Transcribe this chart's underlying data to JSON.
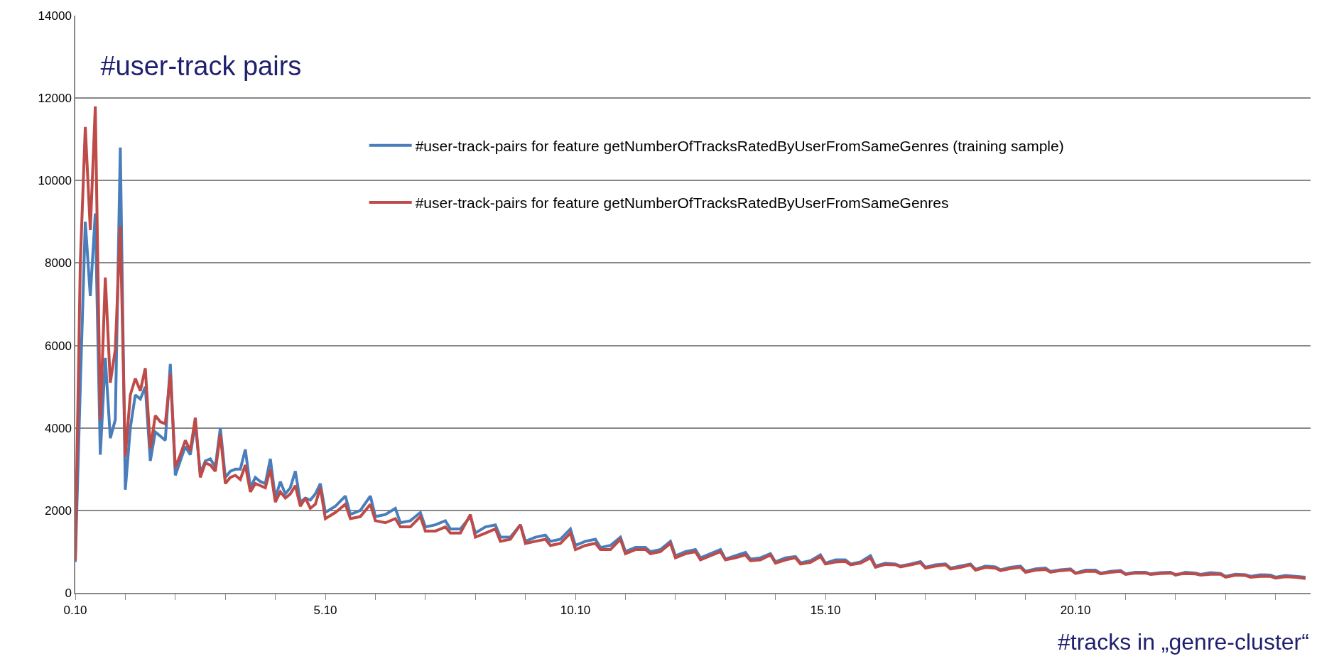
{
  "chart_data": {
    "type": "line",
    "title": "#user-track pairs",
    "xlabel": "#tracks in „genre-cluster“",
    "x": [
      0.1,
      0.2,
      0.3,
      0.4,
      0.5,
      0.6,
      0.7,
      0.8,
      0.9,
      1.0,
      1.1,
      1.2,
      1.3,
      1.4,
      1.5,
      1.6,
      1.7,
      1.8,
      1.9,
      2.0,
      2.1,
      2.2,
      2.3,
      2.4,
      2.5,
      2.6,
      2.7,
      2.8,
      2.9,
      3.0,
      3.1,
      3.2,
      3.3,
      3.4,
      3.5,
      3.6,
      3.7,
      3.8,
      3.9,
      4.0,
      4.1,
      4.2,
      4.3,
      4.4,
      4.5,
      4.6,
      4.7,
      4.8,
      4.9,
      5.0,
      5.1,
      5.3,
      5.5,
      5.6,
      5.8,
      6.0,
      6.1,
      6.3,
      6.5,
      6.6,
      6.8,
      7.0,
      7.1,
      7.3,
      7.5,
      7.6,
      7.8,
      8.0,
      8.1,
      8.3,
      8.5,
      8.6,
      8.8,
      9.0,
      9.1,
      9.3,
      9.5,
      9.6,
      9.8,
      10.0,
      10.1,
      10.3,
      10.5,
      10.6,
      10.8,
      11.0,
      11.1,
      11.3,
      11.5,
      11.6,
      11.8,
      12.0,
      12.1,
      12.3,
      12.5,
      12.6,
      12.8,
      13.0,
      13.1,
      13.3,
      13.5,
      13.6,
      13.8,
      14.0,
      14.1,
      14.3,
      14.5,
      14.6,
      14.8,
      15.0,
      15.1,
      15.3,
      15.5,
      15.6,
      15.8,
      16.0,
      16.1,
      16.3,
      16.5,
      16.6,
      16.8,
      17.0,
      17.1,
      17.3,
      17.5,
      17.6,
      17.8,
      18.0,
      18.1,
      18.3,
      18.5,
      18.6,
      18.8,
      19.0,
      19.1,
      19.3,
      19.5,
      19.6,
      19.8,
      20.0,
      20.1,
      20.3,
      20.5,
      20.6,
      20.8,
      21.0,
      21.1,
      21.3,
      21.5,
      21.6,
      21.8,
      22.0,
      22.1,
      22.3,
      22.5,
      22.6,
      22.8,
      23.0,
      23.1,
      23.3,
      23.5,
      23.6,
      23.8,
      24.0,
      24.1,
      24.3,
      24.5,
      24.7
    ],
    "series": [
      {
        "name": "#user-track-pairs for feature getNumberOfTracksRatedByUserFromSameGenres (training sample)",
        "color": "#4a7ebb",
        "values": [
          750,
          5000,
          9000,
          7200,
          9200,
          3350,
          5700,
          3750,
          4200,
          10800,
          2500,
          4000,
          4800,
          4700,
          5000,
          3200,
          3900,
          3800,
          3700,
          5550,
          2850,
          3200,
          3550,
          3350,
          4100,
          2900,
          3200,
          3250,
          3050,
          4000,
          2800,
          2950,
          3000,
          3000,
          3480,
          2550,
          2800,
          2700,
          2650,
          3250,
          2300,
          2700,
          2400,
          2550,
          2950,
          2200,
          2300,
          2250,
          2400,
          2650,
          1950,
          2100,
          2350,
          1900,
          2000,
          2350,
          1850,
          1900,
          2050,
          1700,
          1750,
          1950,
          1600,
          1650,
          1750,
          1550,
          1550,
          1850,
          1450,
          1600,
          1650,
          1350,
          1350,
          1650,
          1250,
          1350,
          1400,
          1250,
          1300,
          1550,
          1150,
          1250,
          1300,
          1100,
          1150,
          1350,
          1000,
          1100,
          1100,
          1000,
          1050,
          1250,
          900,
          1000,
          1050,
          850,
          950,
          1050,
          820,
          900,
          980,
          820,
          850,
          950,
          750,
          850,
          880,
          730,
          780,
          920,
          720,
          800,
          800,
          700,
          750,
          900,
          650,
          720,
          700,
          650,
          700,
          760,
          620,
          680,
          700,
          600,
          650,
          700,
          570,
          650,
          630,
          560,
          620,
          650,
          520,
          580,
          600,
          520,
          560,
          580,
          480,
          550,
          550,
          480,
          520,
          540,
          460,
          500,
          500,
          460,
          490,
          500,
          430,
          500,
          480,
          450,
          490,
          470,
          400,
          450,
          440,
          400,
          440,
          430,
          380,
          420,
          400,
          380
        ]
      },
      {
        "name": "#user-track-pairs for feature getNumberOfTracksRatedByUserFromSameGenres",
        "color": "#be4b48",
        "values": [
          800,
          8000,
          11300,
          8800,
          11800,
          4200,
          7650,
          5100,
          5900,
          8900,
          3300,
          4800,
          5200,
          4900,
          5450,
          3500,
          4300,
          4150,
          4100,
          5300,
          3050,
          3350,
          3700,
          3450,
          4250,
          2800,
          3150,
          3100,
          2950,
          3850,
          2650,
          2800,
          2850,
          2750,
          3100,
          2450,
          2650,
          2600,
          2550,
          3000,
          2200,
          2450,
          2300,
          2400,
          2600,
          2100,
          2300,
          2050,
          2150,
          2550,
          1800,
          1950,
          2150,
          1800,
          1850,
          2150,
          1750,
          1700,
          1800,
          1600,
          1600,
          1850,
          1500,
          1500,
          1600,
          1450,
          1450,
          1900,
          1350,
          1450,
          1550,
          1250,
          1300,
          1650,
          1200,
          1250,
          1300,
          1150,
          1200,
          1450,
          1050,
          1150,
          1200,
          1050,
          1050,
          1300,
          950,
          1050,
          1050,
          950,
          1000,
          1200,
          850,
          950,
          1000,
          800,
          900,
          1000,
          800,
          850,
          920,
          780,
          800,
          920,
          720,
          800,
          850,
          700,
          740,
          880,
          700,
          750,
          760,
          680,
          720,
          850,
          620,
          690,
          680,
          630,
          680,
          730,
          600,
          650,
          680,
          580,
          620,
          680,
          550,
          620,
          600,
          540,
          590,
          620,
          500,
          550,
          570,
          500,
          540,
          560,
          470,
          520,
          520,
          460,
          500,
          520,
          450,
          480,
          480,
          450,
          470,
          480,
          450,
          470,
          460,
          430,
          450,
          450,
          380,
          430,
          420,
          380,
          400,
          400,
          360,
          390,
          380,
          350
        ]
      }
    ],
    "xlim": [
      0.1,
      24.8
    ],
    "xticks": [
      {
        "value": 0.1,
        "label": "0.10"
      },
      {
        "value": 1.1,
        "label": null
      },
      {
        "value": 2.1,
        "label": null
      },
      {
        "value": 3.1,
        "label": null
      },
      {
        "value": 4.1,
        "label": null
      },
      {
        "value": 5.1,
        "label": "5.10"
      },
      {
        "value": 6.1,
        "label": null
      },
      {
        "value": 7.1,
        "label": null
      },
      {
        "value": 8.1,
        "label": null
      },
      {
        "value": 9.1,
        "label": null
      },
      {
        "value": 10.1,
        "label": "10.10"
      },
      {
        "value": 11.1,
        "label": null
      },
      {
        "value": 12.1,
        "label": null
      },
      {
        "value": 13.1,
        "label": null
      },
      {
        "value": 14.1,
        "label": null
      },
      {
        "value": 15.1,
        "label": "15.10"
      },
      {
        "value": 16.1,
        "label": null
      },
      {
        "value": 17.1,
        "label": null
      },
      {
        "value": 18.1,
        "label": null
      },
      {
        "value": 19.1,
        "label": null
      },
      {
        "value": 20.1,
        "label": "20.10"
      },
      {
        "value": 21.1,
        "label": null
      },
      {
        "value": 22.1,
        "label": null
      },
      {
        "value": 23.1,
        "label": null
      },
      {
        "value": 24.1,
        "label": null
      }
    ],
    "ylim": [
      0,
      14000
    ],
    "yticks": [
      0,
      2000,
      4000,
      6000,
      8000,
      10000,
      12000,
      14000
    ],
    "grid": "y",
    "legend": "top right",
    "marker": "none",
    "line_style": "solid"
  }
}
